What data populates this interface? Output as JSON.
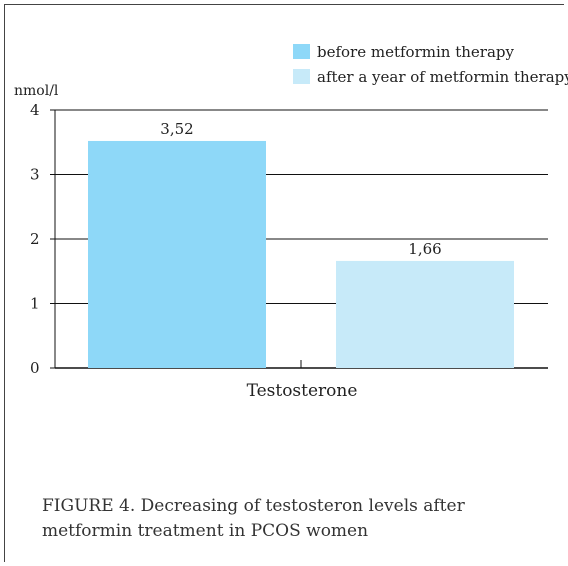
{
  "chart_data": {
    "type": "bar",
    "unit_label": "nmol/l",
    "categories": [
      "Testosterone"
    ],
    "series": [
      {
        "name": "before metformin therapy",
        "values": [
          3.52
        ],
        "value_label": "3,52",
        "color": "#8ed8f8"
      },
      {
        "name": "after a year of metformin therapy",
        "values": [
          1.66
        ],
        "value_label": "1,66",
        "color": "#c7eaf9"
      }
    ],
    "ylim": [
      0,
      4
    ],
    "yticks": [
      "0",
      "1",
      "2",
      "3",
      "4"
    ],
    "grid": true,
    "legend_position": "top-right"
  },
  "caption": "FIGURE 4.  Decreasing of testosteron levels after metformin treatment in PCOS women"
}
